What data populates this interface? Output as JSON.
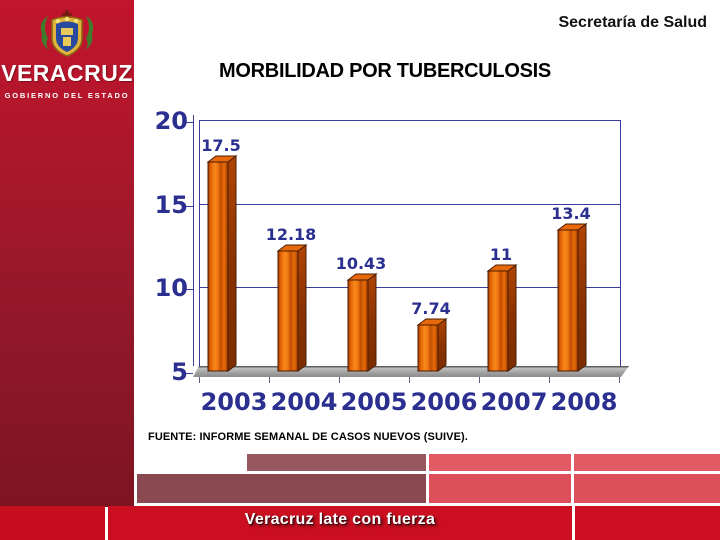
{
  "header": {
    "ministry": "Secretaría de Salud",
    "title": "MORBILIDAD POR TUBERCULOSIS"
  },
  "sidebar": {
    "state_name": "VERACRUZ",
    "government_label": "GOBIERNO DEL ESTADO",
    "emblem_icon": "veracruz-coat-of-arms"
  },
  "source_note": "FUENTE: INFORME SEMANAL DE CASOS NUEVOS (SUIVE).",
  "footer": {
    "slogan": "Veracruz late con fuerza"
  },
  "chart_data": {
    "type": "bar",
    "title": "MORBILIDAD POR TUBERCULOSIS",
    "categories": [
      "2003",
      "2004",
      "2005",
      "2006",
      "2007",
      "2008"
    ],
    "values": [
      17.5,
      12.18,
      10.43,
      7.74,
      11,
      13.4
    ],
    "value_labels": [
      "17.5",
      "12.18",
      "10.43",
      "7.74",
      "11",
      "13.4"
    ],
    "xlabel": "",
    "ylabel": "",
    "ylim": [
      5,
      20
    ],
    "yticks": [
      5,
      10,
      15,
      20
    ],
    "grid": true,
    "legend": "none",
    "style": "3d-bar",
    "colors": {
      "bar_front_bright": "#f98a1c",
      "bar_front_dark": "#a33b00",
      "bar_top_face": "#e8690c",
      "bar_side_dark": "#7c2d00",
      "bar_outline": "#4a1c00",
      "axis_navy": "#3c3c9c",
      "label_navy": "#2b2f90",
      "floor_gray": "#9a9a9a"
    }
  },
  "colors": {
    "sidebar_red_top": "#c2142d",
    "sidebar_red_bottom": "#7e1421",
    "footer_bright_red": "#cb0f20",
    "footer_mauve": "#8a4850",
    "footer_light_red": "#dc4f5b",
    "text_black": "#111111",
    "text_white": "#ffffff"
  }
}
